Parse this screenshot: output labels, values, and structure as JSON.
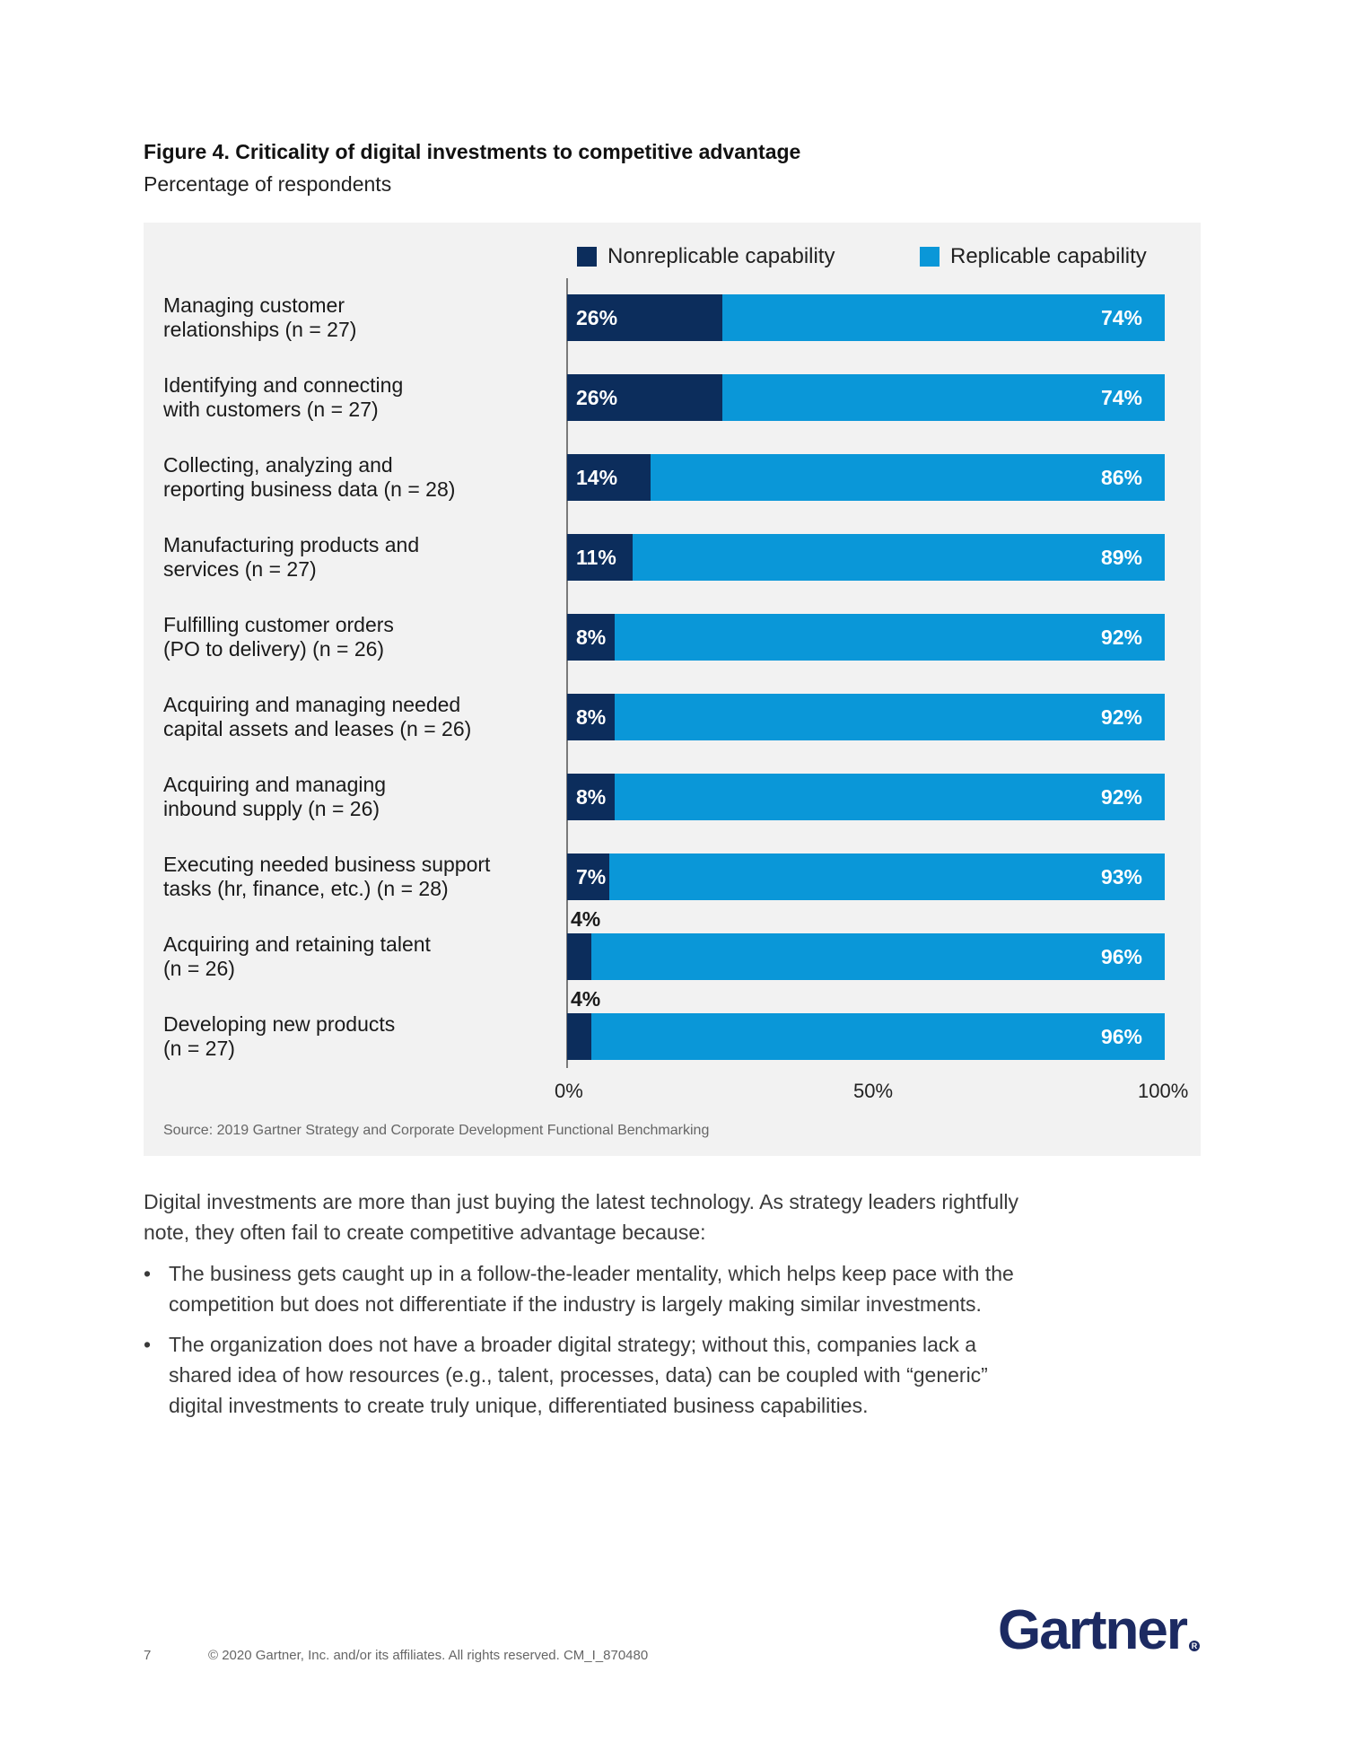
{
  "figure": {
    "title": "Figure 4. Criticality of digital investments to competitive advantage",
    "subtitle": "Percentage of respondents"
  },
  "chart_data": {
    "type": "bar",
    "orientation": "horizontal",
    "stacked": true,
    "categories": [
      [
        "Managing customer",
        "relationships (n = 27)"
      ],
      [
        "Identifying and connecting",
        "with customers (n = 27)"
      ],
      [
        "Collecting, analyzing and",
        "reporting business data (n = 28)"
      ],
      [
        "Manufacturing products and",
        "services (n = 27)"
      ],
      [
        "Fulfilling customer orders",
        "(PO to delivery) (n = 26)"
      ],
      [
        "Acquiring and managing needed",
        "capital assets and leases (n = 26)"
      ],
      [
        "Acquiring and managing",
        "inbound supply (n = 26)"
      ],
      [
        "Executing needed business support",
        "tasks (hr, finance, etc.) (n = 28)"
      ],
      [
        "Acquiring and retaining talent",
        "(n = 26)"
      ],
      [
        "Developing new products",
        "(n = 27)"
      ]
    ],
    "series": [
      {
        "name": "Nonreplicable capability",
        "color": "#0c2d5c",
        "values": [
          26,
          26,
          14,
          11,
          8,
          8,
          8,
          7,
          4,
          4
        ]
      },
      {
        "name": "Replicable capability",
        "color": "#0a97d8",
        "values": [
          74,
          74,
          86,
          89,
          92,
          92,
          92,
          93,
          96,
          96
        ]
      }
    ],
    "xlim": [
      0,
      100
    ],
    "ticks": [
      "0%",
      "50%",
      "100%"
    ],
    "legend_position": "top",
    "source": "Source: 2019 Gartner Strategy and Corporate Development Functional Benchmarking"
  },
  "body": {
    "intro": "Digital investments are more than just buying the latest technology. As strategy leaders rightfully note, they often fail to create competitive advantage because:",
    "bullets": [
      "The business gets caught up in a follow-the-leader mentality, which helps keep pace with the competition but does not differentiate if the industry is largely making similar investments.",
      "The organization does not have a broader digital strategy; without this, companies lack a shared idea of how resources (e.g., talent, processes, data) can be coupled with “generic” digital investments to create truly unique, differentiated business capabilities."
    ],
    "bullet_symbol": "•"
  },
  "footer": {
    "page_number": "7",
    "copyright": "© 2020 Gartner, Inc. and/or its affiliates. All rights reserved. CM_I_870480",
    "logo": "Gartner",
    "logo_mark": "R"
  }
}
